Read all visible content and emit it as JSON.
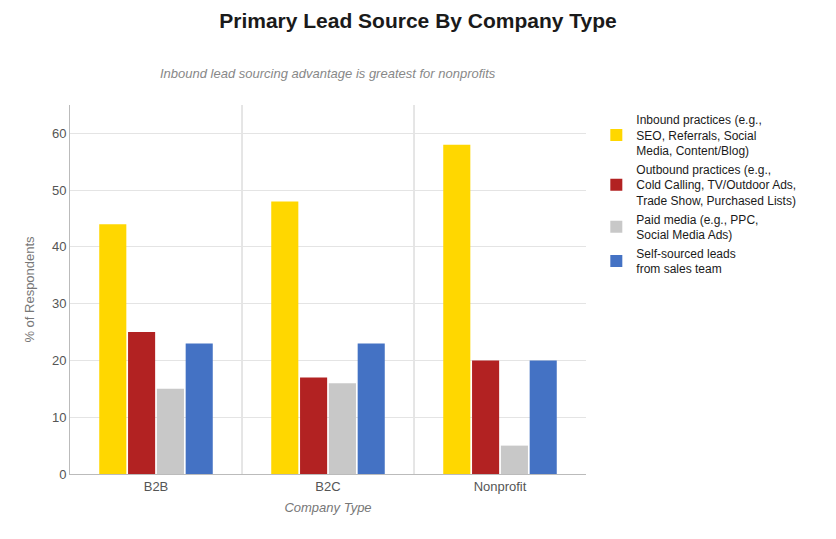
{
  "chart_data": {
    "type": "bar",
    "title": "Primary Lead Source By Company Type",
    "subtitle": "Inbound lead sourcing advantage is greatest for nonprofits",
    "xlabel": "Company Type",
    "ylabel": "% of Respondents",
    "categories": [
      "B2B",
      "B2C",
      "Nonprofit"
    ],
    "series": [
      {
        "name": "Inbound practices (e.g.,\nSEO, Referrals, Social\nMedia, Content/Blog)",
        "color": "#FFD700",
        "values": [
          44,
          48,
          58
        ]
      },
      {
        "name": "Outbound practices (e.g.,\nCold Calling, TV/Outdoor Ads,\nTrade Show, Purchased Lists)",
        "color": "#B22222",
        "values": [
          25,
          17,
          20
        ]
      },
      {
        "name": "Paid media (e.g., PPC,\nSocial Media Ads)",
        "color": "#C8C8C8",
        "values": [
          15,
          16,
          5
        ]
      },
      {
        "name": "Self-sourced leads\nfrom sales team",
        "color": "#4472C4",
        "values": [
          23,
          23,
          20
        ]
      }
    ],
    "ylim": [
      0,
      65
    ],
    "yticks": [
      0,
      10,
      20,
      30,
      40,
      50,
      60
    ],
    "grid": true,
    "legend": "right"
  }
}
